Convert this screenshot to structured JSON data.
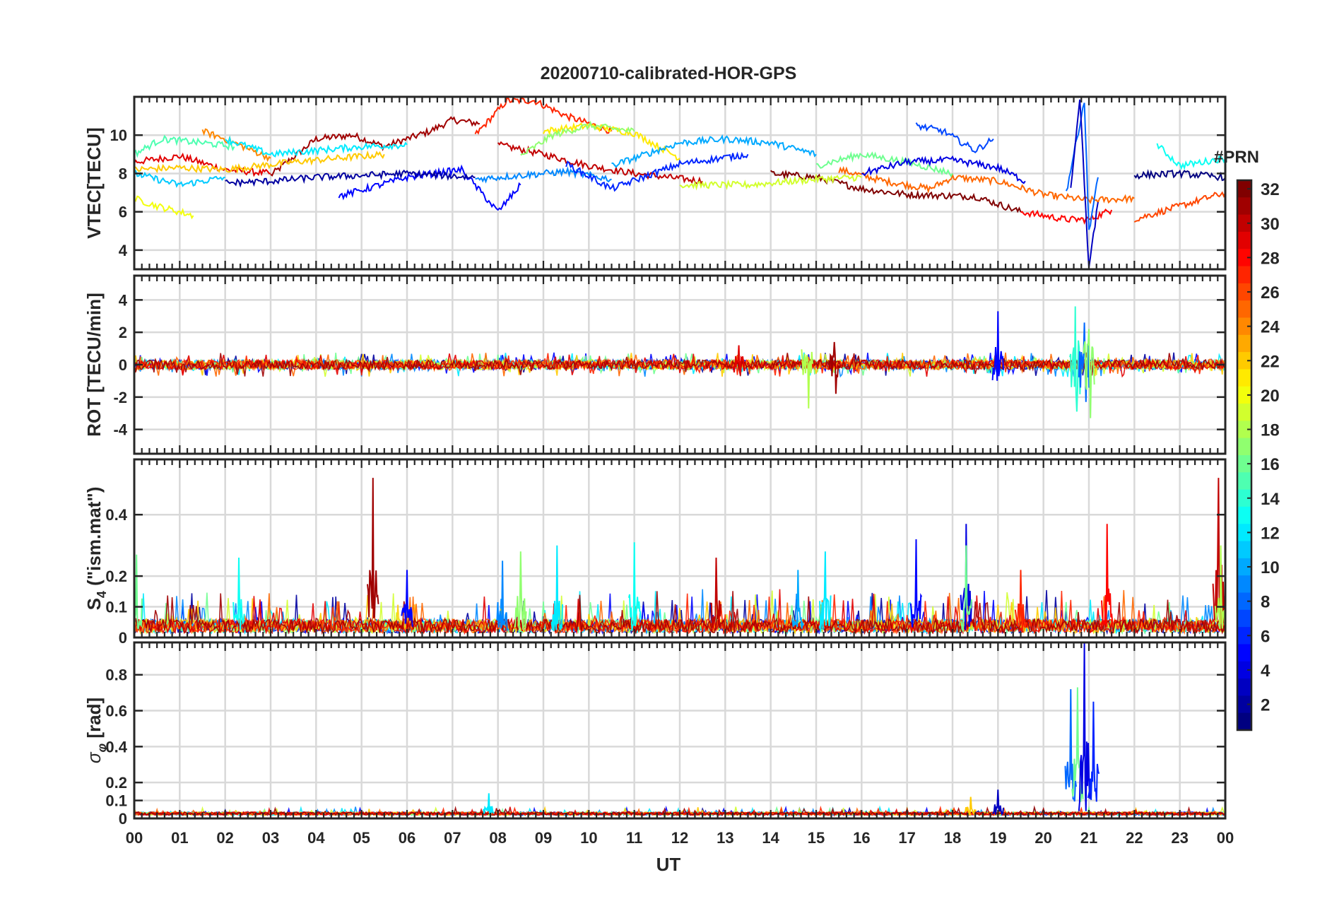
{
  "chart_data": {
    "type": "line",
    "title": "20200710-calibrated-HOR-GPS",
    "xlabel": "UT",
    "xlim": [
      0,
      24
    ],
    "x_tick_labels": [
      "00",
      "01",
      "02",
      "03",
      "04",
      "05",
      "06",
      "07",
      "08",
      "09",
      "10",
      "11",
      "12",
      "13",
      "14",
      "15",
      "16",
      "17",
      "18",
      "19",
      "20",
      "21",
      "22",
      "23",
      "00"
    ],
    "grid": true,
    "colorbar": {
      "title": "#PRN",
      "range": [
        1,
        32
      ],
      "tick_labels": [
        "2",
        "4",
        "6",
        "8",
        "10",
        "12",
        "14",
        "16",
        "18",
        "20",
        "22",
        "24",
        "26",
        "28",
        "30",
        "32"
      ],
      "tick_values": [
        2,
        4,
        6,
        8,
        10,
        12,
        14,
        16,
        18,
        20,
        22,
        24,
        26,
        28,
        30,
        32
      ],
      "colormap": "jet"
    },
    "panels": [
      {
        "id": "vtec",
        "ylabel": "VTEC[TECU]",
        "ylim": [
          3,
          12
        ],
        "y_tick_values": [
          4,
          6,
          8,
          10
        ],
        "y_tick_labels": [
          "4",
          "6",
          "8",
          "10"
        ],
        "series": [
          {
            "prn": 31,
            "values": [
              [
                3.0,
                7.9
              ],
              [
                4.0,
                9.8
              ],
              [
                4.8,
                10.0
              ],
              [
                5.5,
                9.4
              ],
              [
                6.5,
                10.2
              ],
              [
                7.0,
                10.8
              ],
              [
                7.6,
                10.6
              ]
            ]
          },
          {
            "prn": 29,
            "values": [
              [
                0.0,
                8.6
              ],
              [
                1.0,
                8.9
              ],
              [
                2.0,
                8.2
              ],
              [
                3.0,
                8.0
              ]
            ]
          },
          {
            "prn": 27,
            "values": [
              [
                7.5,
                10.0
              ],
              [
                8.2,
                11.8
              ],
              [
                8.8,
                11.8
              ],
              [
                9.5,
                11.0
              ],
              [
                10.5,
                10.2
              ]
            ]
          },
          {
            "prn": 30,
            "values": [
              [
                8.0,
                9.5
              ],
              [
                9.0,
                9.0
              ],
              [
                10.0,
                8.4
              ],
              [
                11.0,
                8.0
              ],
              [
                12.5,
                7.6
              ]
            ]
          },
          {
            "prn": 25,
            "values": [
              [
                15.5,
                8.2
              ],
              [
                16.5,
                7.6
              ],
              [
                17.5,
                7.2
              ],
              [
                18.0,
                7.8
              ],
              [
                19.0,
                7.6
              ],
              [
                20.0,
                6.9
              ],
              [
                21.0,
                6.6
              ],
              [
                22.0,
                6.7
              ]
            ]
          },
          {
            "prn": 32,
            "values": [
              [
                14.0,
                8.0
              ],
              [
                15.0,
                7.8
              ],
              [
                16.0,
                7.2
              ],
              [
                17.0,
                6.9
              ],
              [
                18.5,
                6.8
              ],
              [
                19.5,
                6.0
              ]
            ]
          },
          {
            "prn": 28,
            "values": [
              [
                19.5,
                6.0
              ],
              [
                20.5,
                5.6
              ],
              [
                21.0,
                5.6
              ],
              [
                21.5,
                6.1
              ]
            ]
          },
          {
            "prn": 26,
            "values": [
              [
                22.0,
                5.6
              ],
              [
                23.0,
                6.3
              ],
              [
                24.0,
                7.0
              ]
            ]
          },
          {
            "prn": 24,
            "values": [
              [
                1.5,
                10.2
              ],
              [
                2.0,
                9.8
              ],
              [
                3.0,
                8.8
              ]
            ]
          },
          {
            "prn": 22,
            "values": [
              [
                0.0,
                8.2
              ],
              [
                1.0,
                8.3
              ],
              [
                2.0,
                8.2
              ],
              [
                3.5,
                8.6
              ],
              [
                4.5,
                8.8
              ],
              [
                5.5,
                9.0
              ]
            ]
          },
          {
            "prn": 20,
            "values": [
              [
                0.0,
                6.7
              ],
              [
                0.5,
                6.3
              ],
              [
                1.3,
                5.8
              ]
            ]
          },
          {
            "prn": 21,
            "values": [
              [
                9.0,
                10.2
              ],
              [
                10.0,
                10.5
              ],
              [
                11.0,
                10.1
              ],
              [
                12.0,
                8.8
              ]
            ]
          },
          {
            "prn": 19,
            "values": [
              [
                12.0,
                7.4
              ],
              [
                13.5,
                7.4
              ],
              [
                15.0,
                7.7
              ],
              [
                16.0,
                7.8
              ]
            ]
          },
          {
            "prn": 17,
            "values": [
              [
                8.5,
                8.9
              ],
              [
                9.2,
                10.0
              ],
              [
                10.0,
                10.5
              ],
              [
                11.0,
                10.2
              ]
            ]
          },
          {
            "prn": 16,
            "values": [
              [
                15.0,
                8.4
              ],
              [
                16.0,
                9.0
              ],
              [
                17.0,
                8.6
              ],
              [
                18.0,
                8.0
              ]
            ]
          },
          {
            "prn": 15,
            "values": [
              [
                0.0,
                9.0
              ],
              [
                0.6,
                9.8
              ],
              [
                1.5,
                9.6
              ],
              [
                2.2,
                9.4
              ]
            ]
          },
          {
            "prn": 13,
            "values": [
              [
                22.5,
                9.5
              ],
              [
                23.0,
                8.4
              ],
              [
                24.0,
                8.8
              ]
            ]
          },
          {
            "prn": 12,
            "values": [
              [
                2.0,
                9.8
              ],
              [
                3.0,
                9.0
              ],
              [
                4.0,
                9.2
              ],
              [
                5.0,
                9.4
              ],
              [
                6.0,
                9.5
              ]
            ]
          },
          {
            "prn": 11,
            "values": [
              [
                0.0,
                8.0
              ],
              [
                1.0,
                7.4
              ],
              [
                2.0,
                7.8
              ]
            ]
          },
          {
            "prn": 10,
            "values": [
              [
                10.5,
                8.4
              ],
              [
                12.0,
                9.6
              ],
              [
                13.0,
                9.8
              ],
              [
                14.0,
                9.6
              ],
              [
                15.0,
                9.0
              ]
            ]
          },
          {
            "prn": 9,
            "values": [
              [
                7.5,
                7.7
              ],
              [
                8.5,
                7.9
              ],
              [
                9.5,
                8.1
              ],
              [
                10.5,
                7.7
              ]
            ]
          },
          {
            "prn": 8,
            "values": [
              [
                20.5,
                7.0
              ],
              [
                20.9,
                11.8
              ],
              [
                21.0,
                5.0
              ],
              [
                21.2,
                7.8
              ]
            ]
          },
          {
            "prn": 7,
            "values": [
              [
                17.2,
                10.5
              ],
              [
                17.8,
                10.2
              ],
              [
                18.5,
                9.2
              ],
              [
                18.9,
                9.8
              ]
            ]
          },
          {
            "prn": 6,
            "values": [
              [
                9.5,
                8.5
              ],
              [
                10.5,
                7.2
              ],
              [
                12.0,
                8.5
              ],
              [
                13.5,
                9.0
              ]
            ]
          },
          {
            "prn": 5,
            "values": [
              [
                4.5,
                6.8
              ],
              [
                6.0,
                7.8
              ],
              [
                7.2,
                8.2
              ],
              [
                8.0,
                6.0
              ],
              [
                8.5,
                7.4
              ]
            ]
          },
          {
            "prn": 4,
            "values": [
              [
                16.0,
                8.0
              ],
              [
                17.0,
                8.6
              ],
              [
                18.0,
                8.7
              ],
              [
                19.0,
                8.3
              ],
              [
                19.6,
                7.6
              ]
            ]
          },
          {
            "prn": 3,
            "values": [
              [
                20.6,
                7.2
              ],
              [
                20.8,
                12.0
              ],
              [
                21.0,
                3.0
              ],
              [
                21.2,
                6.5
              ]
            ]
          },
          {
            "prn": 2,
            "values": [
              [
                2.0,
                7.5
              ],
              [
                3.0,
                7.6
              ],
              [
                4.0,
                7.8
              ],
              [
                5.0,
                7.9
              ],
              [
                6.0,
                8.0
              ],
              [
                7.5,
                7.8
              ]
            ]
          },
          {
            "prn": 1,
            "values": [
              [
                22.0,
                7.9
              ],
              [
                23.0,
                8.0
              ],
              [
                24.0,
                7.8
              ]
            ]
          }
        ]
      },
      {
        "id": "rot",
        "ylabel": "ROT [TECU/min]",
        "ylim": [
          -5.5,
          5.5
        ],
        "y_tick_values": [
          -4,
          -2,
          0,
          2,
          4
        ],
        "y_tick_labels": [
          "-4",
          "-2",
          "0",
          "2",
          "4"
        ],
        "baseline": 0,
        "background_amplitude": 0.3,
        "events": [
          {
            "prn": 18,
            "x": 14.8,
            "min": -2.7,
            "max": 0.6
          },
          {
            "prn": 31,
            "x": 15.4,
            "min": -1.8,
            "max": 1.4
          },
          {
            "prn": 29,
            "x": 13.3,
            "min": -0.6,
            "max": 1.2
          },
          {
            "prn": 5,
            "x": 19.0,
            "min": -0.4,
            "max": 3.3
          },
          {
            "prn": 14,
            "x": 20.7,
            "min": -2.9,
            "max": 3.6
          },
          {
            "prn": 8,
            "x": 20.9,
            "min": -2.3,
            "max": 2.6
          },
          {
            "prn": 17,
            "x": 21.0,
            "min": -3.3,
            "max": 2.2
          }
        ]
      },
      {
        "id": "s4",
        "ylabel": "S4 (\"ism.mat\")",
        "ylim": [
          0,
          0.58
        ],
        "y_tick_values": [
          0,
          0.1,
          0.2,
          0.4
        ],
        "y_tick_labels": [
          "0",
          "0.1",
          "0.2",
          "0.4"
        ],
        "background_level": 0.05,
        "events": [
          {
            "prn": 31,
            "x": 5.25,
            "max": 0.52
          },
          {
            "prn": 30,
            "x": 23.85,
            "max": 0.52
          },
          {
            "prn": 4,
            "x": 18.3,
            "max": 0.37
          },
          {
            "prn": 28,
            "x": 21.4,
            "max": 0.37
          },
          {
            "prn": 5,
            "x": 17.2,
            "max": 0.32
          },
          {
            "prn": 12,
            "x": 9.3,
            "max": 0.3
          },
          {
            "prn": 13,
            "x": 11.0,
            "max": 0.31
          },
          {
            "prn": 12,
            "x": 15.2,
            "max": 0.28
          },
          {
            "prn": 18,
            "x": 23.9,
            "max": 0.3
          },
          {
            "prn": 13,
            "x": 2.3,
            "max": 0.26
          },
          {
            "prn": 17,
            "x": 8.5,
            "max": 0.28
          },
          {
            "prn": 30,
            "x": 12.8,
            "max": 0.26
          },
          {
            "prn": 10,
            "x": 14.6,
            "max": 0.22
          },
          {
            "prn": 16,
            "x": 18.3,
            "max": 0.3
          },
          {
            "prn": 27,
            "x": 19.5,
            "max": 0.22
          },
          {
            "prn": 16,
            "x": 0.05,
            "max": 0.27
          },
          {
            "prn": 5,
            "x": 6.0,
            "max": 0.22
          },
          {
            "prn": 9,
            "x": 8.1,
            "max": 0.25
          }
        ]
      },
      {
        "id": "sigma_phi",
        "ylabel": "σφ [rad]",
        "ylim": [
          0,
          0.98
        ],
        "y_tick_values": [
          0,
          0.1,
          0.2,
          0.4,
          0.6,
          0.8
        ],
        "y_tick_labels": [
          "0",
          "0.1",
          "0.2",
          "0.4",
          "0.6",
          "0.8"
        ],
        "background_level": 0.03,
        "events": [
          {
            "prn": 8,
            "x": 20.6,
            "max": 0.72
          },
          {
            "prn": 16,
            "x": 20.75,
            "max": 0.73
          },
          {
            "prn": 4,
            "x": 20.9,
            "max": 0.98
          },
          {
            "prn": 6,
            "x": 21.1,
            "max": 0.65
          },
          {
            "prn": 3,
            "x": 19.0,
            "max": 0.16
          },
          {
            "prn": 12,
            "x": 7.8,
            "max": 0.14
          },
          {
            "prn": 22,
            "x": 18.4,
            "max": 0.12
          }
        ]
      }
    ]
  }
}
